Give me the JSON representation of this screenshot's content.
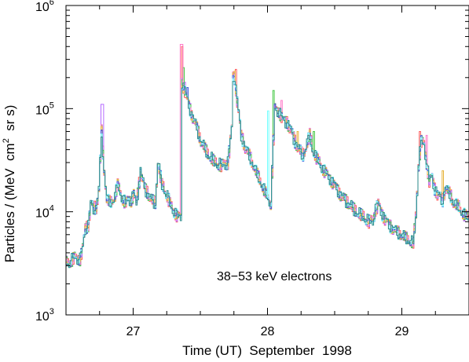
{
  "chart_data": {
    "type": "line",
    "title": "",
    "xlabel": "Time (UT)  September  1998",
    "ylabel_prefix": "Particles / (MeV  cm",
    "ylabel_sup": "2",
    "ylabel_suffix": "  sr s)",
    "annotation": "38−53 keV electrons",
    "x_unit": "day of September 1998 (UT)",
    "xlim": [
      26.5,
      29.5
    ],
    "ylim": [
      1000,
      1000000
    ],
    "yscale": "log",
    "grid": false,
    "legend": "none",
    "x_ticks": [
      {
        "value": 27,
        "label": "27"
      },
      {
        "value": 28,
        "label": "28"
      },
      {
        "value": 29,
        "label": "29"
      }
    ],
    "y_ticks": [
      {
        "value": 1000,
        "base": "10",
        "exp": "3"
      },
      {
        "value": 10000,
        "base": "10",
        "exp": "4"
      },
      {
        "value": 100000,
        "base": "10",
        "exp": "5"
      },
      {
        "value": 1000000,
        "base": "10",
        "exp": "6"
      }
    ],
    "base_series": {
      "x": [
        26.5,
        26.52,
        26.56,
        26.6,
        26.62,
        26.64,
        26.66,
        26.68,
        26.7,
        26.72,
        26.74,
        26.76,
        26.765,
        26.78,
        26.8,
        26.83,
        26.86,
        26.88,
        26.91,
        26.94,
        26.96,
        26.98,
        27.0,
        27.02,
        27.05,
        27.08,
        27.1,
        27.13,
        27.16,
        27.18,
        27.21,
        27.25,
        27.28,
        27.3,
        27.33,
        27.35,
        27.352,
        27.36,
        27.38,
        27.4,
        27.43,
        27.47,
        27.5,
        27.55,
        27.6,
        27.65,
        27.7,
        27.73,
        27.74,
        27.75,
        27.77,
        27.8,
        27.83,
        27.86,
        27.9,
        27.95,
        27.98,
        28.0,
        28.02,
        28.05,
        28.08,
        28.11,
        28.14,
        28.17,
        28.2,
        28.23,
        28.26,
        28.29,
        28.31,
        28.33,
        28.36,
        28.4,
        28.45,
        28.5,
        28.55,
        28.6,
        28.65,
        28.7,
        28.75,
        28.78,
        28.8,
        28.82,
        28.85,
        28.9,
        28.95,
        29.0,
        29.05,
        29.08,
        29.1,
        29.12,
        29.14,
        29.16,
        29.18,
        29.2,
        29.22,
        29.24,
        29.26,
        29.28,
        29.3,
        29.32,
        29.35,
        29.38,
        29.42,
        29.45,
        29.47,
        29.5
      ],
      "y": [
        3200,
        3200,
        3600,
        3500,
        4500,
        7000,
        7500,
        12000,
        11000,
        11000,
        16000,
        60000,
        45000,
        25000,
        13000,
        12000,
        14000,
        18000,
        14000,
        12000,
        13500,
        13000,
        15000,
        12000,
        25000,
        17000,
        15500,
        13000,
        12000,
        30000,
        18000,
        14000,
        11000,
        10000,
        9000,
        9000,
        170000,
        180000,
        150000,
        120000,
        90000,
        65000,
        48000,
        36000,
        30000,
        28000,
        30000,
        65000,
        210000,
        200000,
        120000,
        55000,
        42000,
        35000,
        26000,
        18500,
        15000,
        13500,
        12000,
        100000,
        95000,
        78000,
        75000,
        62000,
        48000,
        40000,
        35000,
        45000,
        55000,
        40000,
        33000,
        27000,
        22000,
        18000,
        14000,
        12000,
        10000,
        9000,
        8000,
        8200,
        10500,
        12000,
        9500,
        7500,
        6500,
        5800,
        5200,
        4900,
        9000,
        28000,
        48000,
        45000,
        30000,
        20000,
        22000,
        17000,
        15000,
        14000,
        13000,
        17000,
        15000,
        12000,
        11000,
        9500,
        9000,
        8500
      ]
    },
    "channels": [
      {
        "color": "#ff5a5a",
        "peaks": [
          {
            "x": 27.36,
            "y": 400000
          },
          {
            "x": 27.76,
            "y": 240000
          },
          {
            "x": 29.13,
            "y": 60000
          }
        ]
      },
      {
        "color": "#b469ff",
        "peaks": [
          {
            "x": 26.765,
            "y": 110000
          },
          {
            "x": 27.38,
            "y": 180000
          },
          {
            "x": 29.16,
            "y": 45000
          }
        ]
      },
      {
        "color": "#46c846",
        "peaks": [
          {
            "x": 27.37,
            "y": 250000
          },
          {
            "x": 28.04,
            "y": 150000
          },
          {
            "x": 28.34,
            "y": 60000
          }
        ]
      },
      {
        "color": "#ff78c8",
        "peaks": [
          {
            "x": 27.355,
            "y": 420000
          },
          {
            "x": 28.1,
            "y": 120000
          },
          {
            "x": 29.18,
            "y": 55000
          }
        ]
      },
      {
        "color": "#e6b43c",
        "peaks": [
          {
            "x": 27.75,
            "y": 230000
          },
          {
            "x": 28.22,
            "y": 60000
          },
          {
            "x": 29.3,
            "y": 25000
          }
        ]
      },
      {
        "color": "#3c5adc",
        "peaks": [
          {
            "x": 27.4,
            "y": 160000
          },
          {
            "x": 28.05,
            "y": 110000
          },
          {
            "x": 29.14,
            "y": 40000
          }
        ]
      },
      {
        "color": "#78ffff",
        "peaks": [
          {
            "x": 28.0,
            "y": 95000
          },
          {
            "x": 28.95,
            "y": 5000
          }
        ]
      },
      {
        "color": "#2a8a8a",
        "peaks": []
      }
    ]
  }
}
